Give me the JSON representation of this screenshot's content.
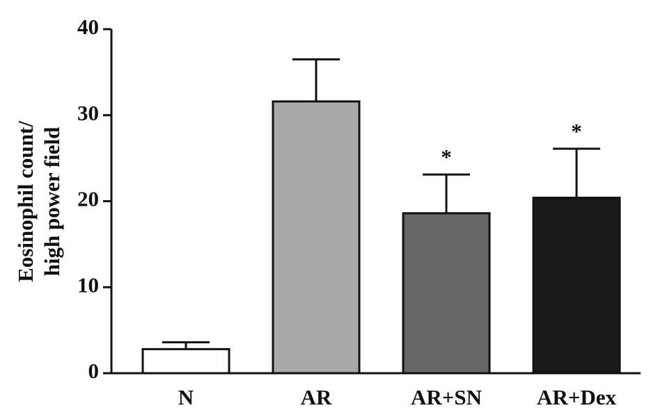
{
  "chart_data": {
    "type": "bar",
    "y_label": [
      "Eosinophil count/",
      "high power field"
    ],
    "categories": [
      "N",
      "AR",
      "AR+SN",
      "AR+Dex"
    ],
    "values": [
      2.8,
      31.6,
      18.6,
      20.4
    ],
    "errors": [
      0.8,
      4.9,
      4.5,
      5.7
    ],
    "annotations": [
      null,
      null,
      "*",
      "*"
    ],
    "colors": [
      "#ffffff",
      "#aaaaaa",
      "#666666",
      "#1a1a1a"
    ],
    "ylim": [
      0,
      40
    ],
    "yticks": [
      0,
      10,
      20,
      30,
      40
    ],
    "grid": false
  }
}
